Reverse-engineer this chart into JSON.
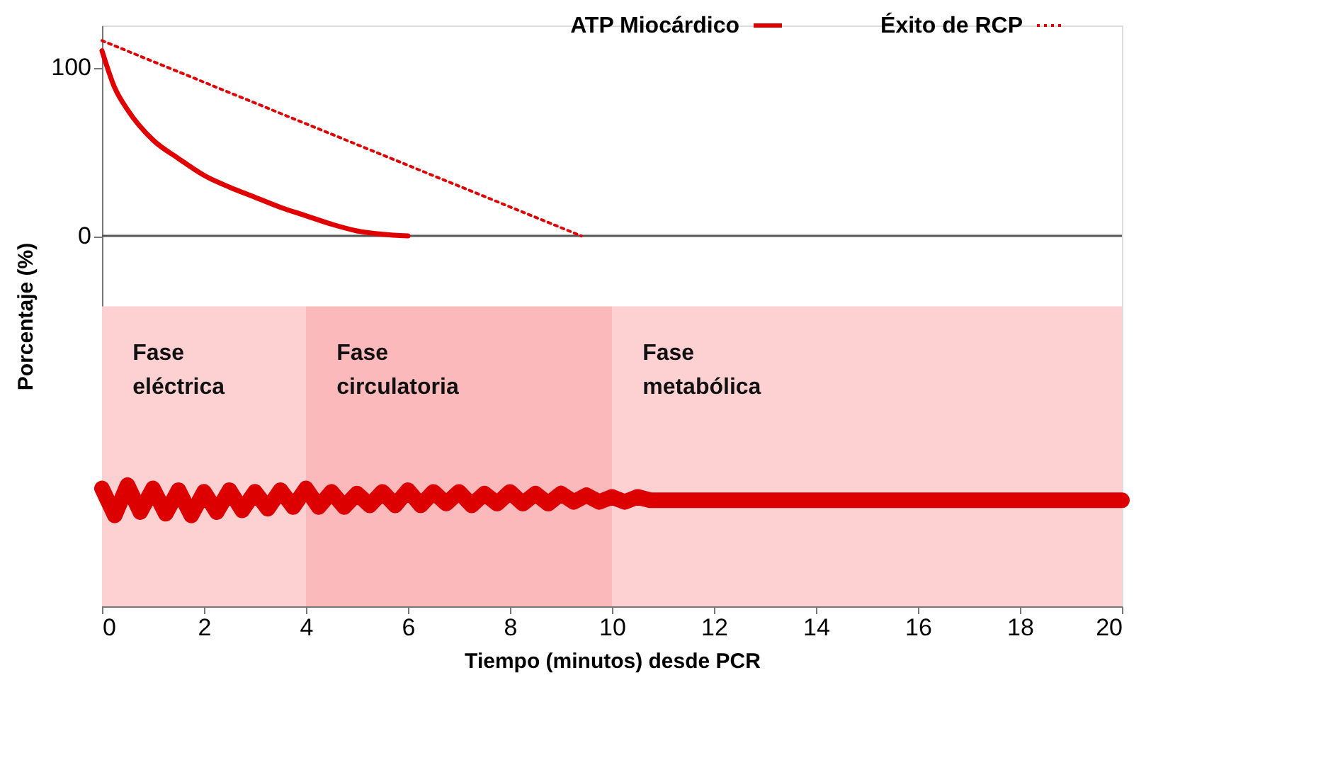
{
  "chart_data": {
    "type": "line",
    "xlabel": "Tiempo (minutos) desde PCR",
    "ylabel": "Porcentaje (%)",
    "xlim": [
      0,
      20
    ],
    "xticks": [
      0,
      2,
      4,
      6,
      8,
      10,
      12,
      14,
      16,
      18,
      20
    ],
    "ylim": [
      -220,
      125
    ],
    "yticks": [
      0,
      100
    ],
    "grid": false,
    "legend": "top right",
    "marker": "none",
    "series": [
      {
        "name": "ATP Miocárdico",
        "color": "#e00000",
        "line_style": "solid",
        "x": [
          0,
          0.25,
          0.5,
          1,
          1.5,
          2,
          2.5,
          3,
          3.5,
          4,
          4.5,
          5,
          5.5,
          6
        ],
        "values": [
          110,
          88,
          75,
          57,
          46,
          36,
          29,
          23,
          17,
          12,
          7,
          3,
          1,
          0
        ]
      },
      {
        "name": "Éxito de RCP",
        "color": "#e00000",
        "line_style": "dotted",
        "x": [
          0,
          9.4
        ],
        "values": [
          116,
          0
        ]
      },
      {
        "color": "#dd0000",
        "line_style": "solid",
        "x": [
          0,
          0.25,
          0.5,
          0.75,
          1,
          1.25,
          1.5,
          1.75,
          2,
          2.25,
          2.5,
          2.75,
          3,
          3.25,
          3.5,
          3.75,
          4,
          4.25,
          4.5,
          4.75,
          5,
          5.25,
          5.5,
          5.75,
          6,
          6.25,
          6.5,
          6.75,
          7,
          7.25,
          7.5,
          7.75,
          8,
          8.25,
          8.5,
          8.75,
          9,
          9.25,
          9.5,
          9.75,
          10,
          10.25,
          10.5,
          10.75,
          11,
          20
        ],
        "values": [
          -150,
          -166,
          -148,
          -164,
          -150,
          -165,
          -151,
          -166,
          -152,
          -164,
          -151,
          -163,
          -152,
          -162,
          -151,
          -161,
          -150,
          -161,
          -152,
          -161,
          -153,
          -160,
          -152,
          -160,
          -151,
          -160,
          -152,
          -159,
          -152,
          -160,
          -153,
          -159,
          -152,
          -159,
          -153,
          -159,
          -153,
          -158,
          -154,
          -158,
          -155,
          -158,
          -155,
          -157,
          -157,
          -157
        ]
      }
    ],
    "ref_lines": [
      {
        "axis": "y",
        "value": 0,
        "color": "#555555",
        "line_style": "solid"
      }
    ],
    "bands": [
      {
        "axis": "x",
        "from": 0,
        "to": 4,
        "label": "Fase eléctrica",
        "color": "#fdd0d2"
      },
      {
        "axis": "x",
        "from": 4,
        "to": 10,
        "label": "Fase circulatoria",
        "color": "#fbb9bc"
      },
      {
        "axis": "x",
        "from": 10,
        "to": 20,
        "label": "Fase metabólica",
        "color": "#fdd0d2"
      }
    ]
  }
}
